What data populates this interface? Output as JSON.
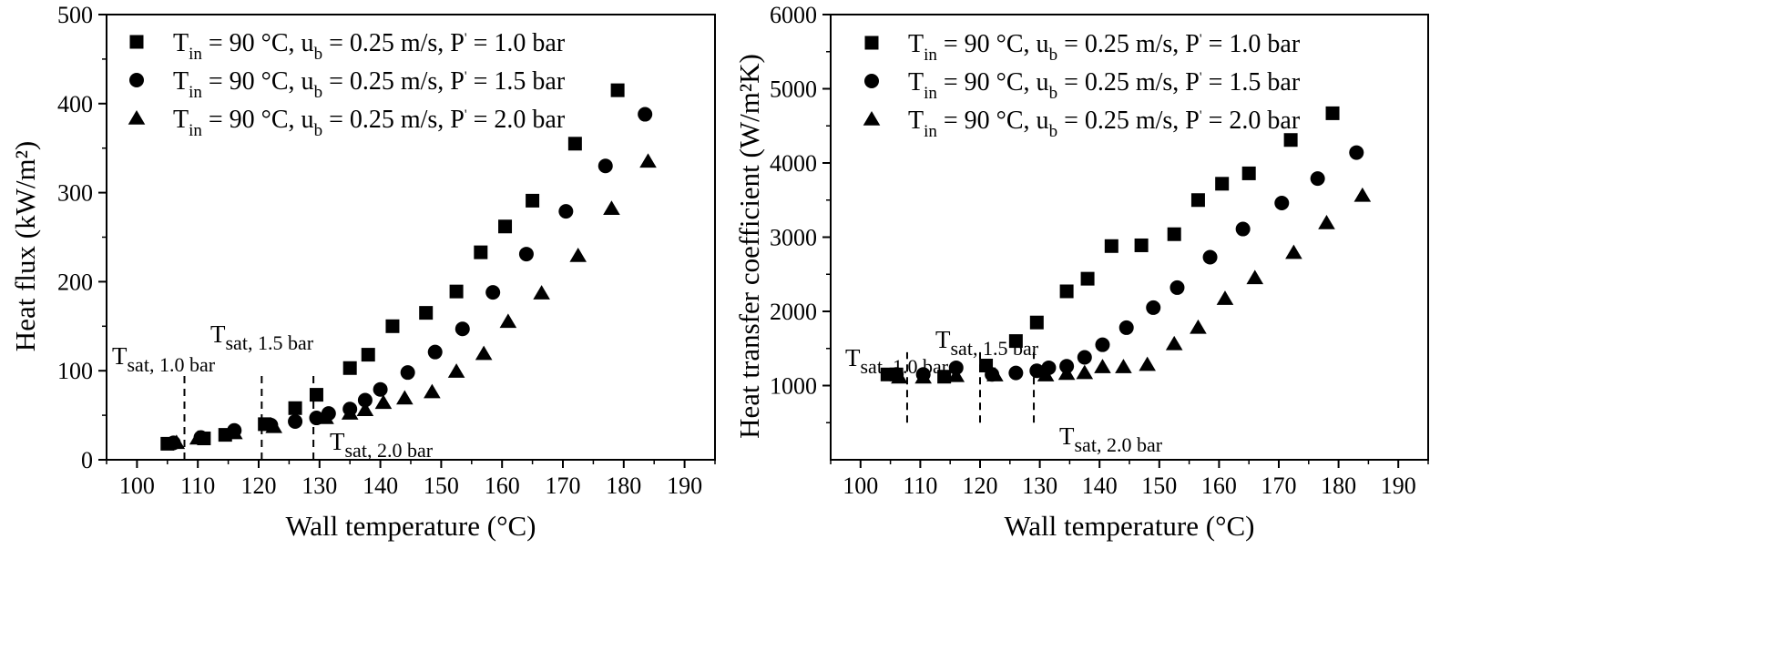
{
  "chart_data": [
    {
      "type": "scatter",
      "title": "",
      "xlabel": "Wall temperature (°C)",
      "ylabel": "Heat flux (kW/m²)",
      "xlim": [
        95,
        195
      ],
      "ylim": [
        0,
        500
      ],
      "xticks": [
        100,
        110,
        120,
        130,
        140,
        150,
        160,
        170,
        180,
        190
      ],
      "yticks": [
        0,
        100,
        200,
        300,
        400,
        500
      ],
      "legend_position": "top-left",
      "series": [
        {
          "name": "Tin = 90 °C, ub = 0.25 m/s, P = 1.0 bar",
          "marker": "square",
          "x": [
            105.0,
            111.0,
            114.5,
            121.0,
            126.0,
            129.5,
            135.0,
            138.0,
            142.0,
            147.5,
            152.5,
            156.5,
            160.5,
            165.0,
            172.0,
            179.0
          ],
          "y": [
            18,
            24,
            28,
            40,
            58,
            73,
            103,
            118,
            150,
            165,
            189,
            233,
            262,
            291,
            355,
            415
          ]
        },
        {
          "name": "Tin = 90 °C, ub = 0.25 m/s, P = 1.5 bar",
          "marker": "circle",
          "x": [
            106.0,
            110.5,
            116.0,
            122.0,
            126.0,
            129.5,
            131.5,
            135.0,
            137.5,
            140.0,
            144.5,
            149.0,
            153.5,
            158.5,
            164.0,
            170.5,
            177.0,
            183.5
          ],
          "y": [
            19,
            25,
            33,
            39,
            43,
            47,
            52,
            57,
            67,
            79,
            98,
            121,
            147,
            188,
            231,
            279,
            330,
            388
          ]
        },
        {
          "name": "Tin = 90 °C, ub = 0.25 m/s, P = 2.0 bar",
          "marker": "triangle",
          "x": [
            106.5,
            110.0,
            116.0,
            122.5,
            131.0,
            135.0,
            137.5,
            140.5,
            144.0,
            148.5,
            152.5,
            157.0,
            161.0,
            166.5,
            172.5,
            178.0,
            184.0
          ],
          "y": [
            19,
            24,
            30,
            37,
            47,
            52,
            56,
            64,
            69,
            76,
            99,
            119,
            155,
            187,
            229,
            282,
            335
          ]
        }
      ],
      "annotations": [
        {
          "label": "T",
          "sub": "sat, 1.0 bar",
          "x_line": 107.8,
          "y_line": [
            0,
            100
          ]
        },
        {
          "label": "T",
          "sub": "sat, 1.5 bar",
          "x_line": 120.5,
          "y_line": [
            0,
            100
          ]
        },
        {
          "label": "T",
          "sub": "sat, 2.0 bar",
          "x_line": 129.0,
          "y_line": [
            0,
            100
          ]
        }
      ]
    },
    {
      "type": "scatter",
      "title": "",
      "xlabel": "Wall temperature (°C)",
      "ylabel": "Heat transfer coefficient (W/m²K)",
      "xlim": [
        95,
        195
      ],
      "ylim": [
        0,
        6000
      ],
      "xticks": [
        100,
        110,
        120,
        130,
        140,
        150,
        160,
        170,
        180,
        190
      ],
      "yticks": [
        1000,
        2000,
        3000,
        4000,
        5000,
        6000
      ],
      "legend_position": "top-left",
      "series": [
        {
          "name": "Tin = 90 °C, ub = 0.25 m/s, P = 1.0 bar",
          "marker": "square",
          "x": [
            104.5,
            106.0,
            114.0,
            121.0,
            126.0,
            129.5,
            134.5,
            138.0,
            142.0,
            147.0,
            152.5,
            156.5,
            160.5,
            165.0,
            172.0,
            179.0
          ],
          "y": [
            1150,
            1150,
            1120,
            1270,
            1600,
            1850,
            2270,
            2440,
            2880,
            2890,
            3040,
            3500,
            3720,
            3860,
            4310,
            4670
          ]
        },
        {
          "name": "Tin = 90 °C, ub = 0.25 m/s, P = 1.5 bar",
          "marker": "circle",
          "x": [
            106.0,
            110.5,
            116.0,
            122.0,
            126.0,
            129.5,
            131.5,
            134.5,
            137.5,
            140.5,
            144.5,
            149.0,
            153.0,
            158.5,
            164.0,
            170.5,
            176.5,
            183.0
          ],
          "y": [
            1150,
            1150,
            1240,
            1150,
            1170,
            1200,
            1240,
            1260,
            1380,
            1550,
            1780,
            2050,
            2320,
            2730,
            3110,
            3460,
            3790,
            4140
          ]
        },
        {
          "name": "Tin = 90 °C, ub = 0.25 m/s, P = 2.0 bar",
          "marker": "triangle",
          "x": [
            106.5,
            110.5,
            116.0,
            122.5,
            131.0,
            134.5,
            137.5,
            140.5,
            144.0,
            148.0,
            152.5,
            156.5,
            161.0,
            166.0,
            172.5,
            178.0,
            184.0
          ],
          "y": [
            1110,
            1110,
            1130,
            1140,
            1140,
            1160,
            1170,
            1250,
            1250,
            1280,
            1560,
            1780,
            2170,
            2450,
            2790,
            3190,
            3560
          ]
        }
      ],
      "annotations": [
        {
          "label": "T",
          "sub": "sat, 1.0 bar",
          "x_line": 107.8,
          "y_line": [
            500,
            1450
          ]
        },
        {
          "label": "T",
          "sub": "sat, 1.5 bar",
          "x_line": 120.0,
          "y_line": [
            500,
            1450
          ]
        },
        {
          "label": "T",
          "sub": "sat, 2.0 bar",
          "x_line": 129.0,
          "y_line": [
            500,
            1450
          ]
        }
      ]
    }
  ],
  "legend_parts": {
    "t_label": "T",
    "t_sub": "in",
    "middle": " = 90 °C, u",
    "u_sub": "b",
    "tail_prefix": " = 0.25 m/s, P",
    "p_mark": "'",
    "tail_suffix_10": " = 1.0 bar",
    "tail_suffix_15": " = 1.5 bar",
    "tail_suffix_20": " = 2.0 bar"
  },
  "colors": {
    "ink": "#000000",
    "background": "#ffffff"
  }
}
